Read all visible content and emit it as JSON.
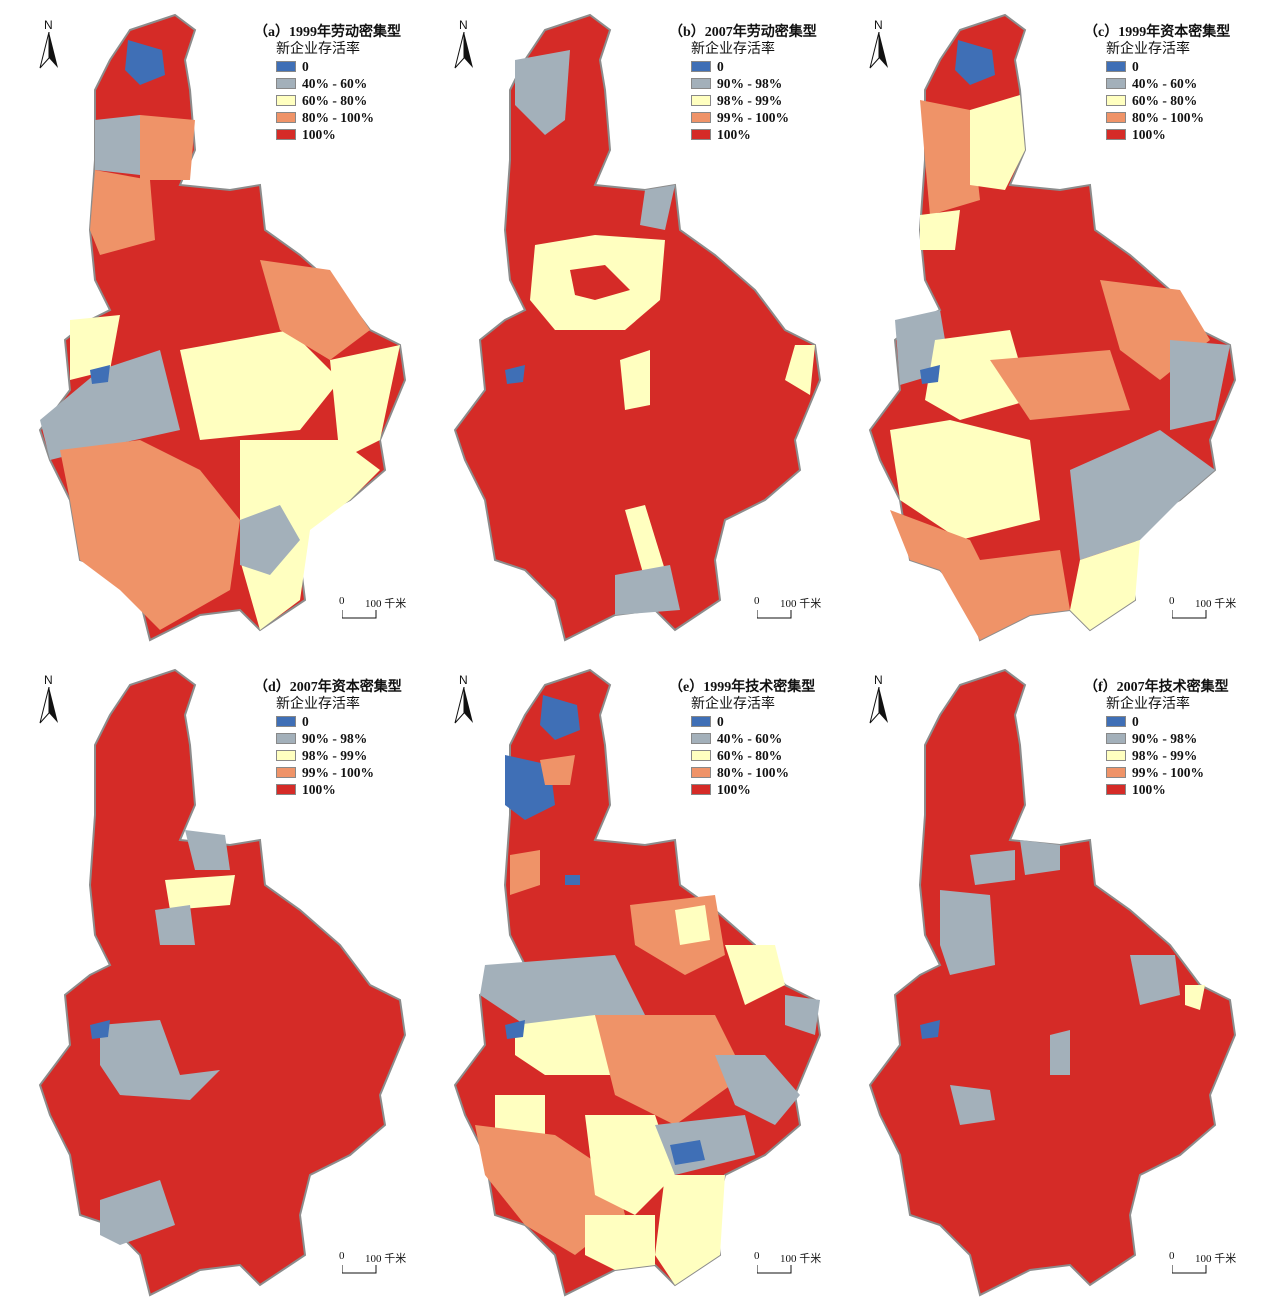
{
  "colors": {
    "blue": "#3f6fb6",
    "gray": "#a3b0ba",
    "lightyellow": "#ffffc0",
    "orange": "#ef9368",
    "red": "#d52b27",
    "border": "#8c8c8c"
  },
  "north_label": "N",
  "scale": {
    "zero": "0",
    "distance": "100 千米"
  },
  "panels": [
    {
      "id": "a",
      "title_line1": "（a）1999年劳动密集型",
      "title_line2": "新企业存活率",
      "legend": [
        "0",
        "40% - 60%",
        "60% - 80%",
        "80% - 100%",
        "100%"
      ]
    },
    {
      "id": "b",
      "title_line1": "（b）2007年劳动密集型",
      "title_line2": "新企业存活率",
      "legend": [
        "0",
        "90% - 98%",
        "98% - 99%",
        "99% - 100%",
        "100%"
      ]
    },
    {
      "id": "c",
      "title_line1": "（c）1999年资本密集型",
      "title_line2": "新企业存活率",
      "legend": [
        "0",
        "40% - 60%",
        "60% - 80%",
        "80% - 100%",
        "100%"
      ]
    },
    {
      "id": "d",
      "title_line1": "（d）2007年资本密集型",
      "title_line2": "新企业存活率",
      "legend": [
        "0",
        "90% - 98%",
        "98% - 99%",
        "99% - 100%",
        "100%"
      ]
    },
    {
      "id": "e",
      "title_line1": "（e）1999年技术密集型",
      "title_line2": "新企业存活率",
      "legend": [
        "0",
        "40% - 60%",
        "60% - 80%",
        "80% - 100%",
        "100%"
      ]
    },
    {
      "id": "f",
      "title_line1": "（f）2007年技术密集型",
      "title_line2": "新企业存活率",
      "legend": [
        "0",
        "90% - 98%",
        "98% - 99%",
        "99% - 100%",
        "100%"
      ]
    }
  ]
}
